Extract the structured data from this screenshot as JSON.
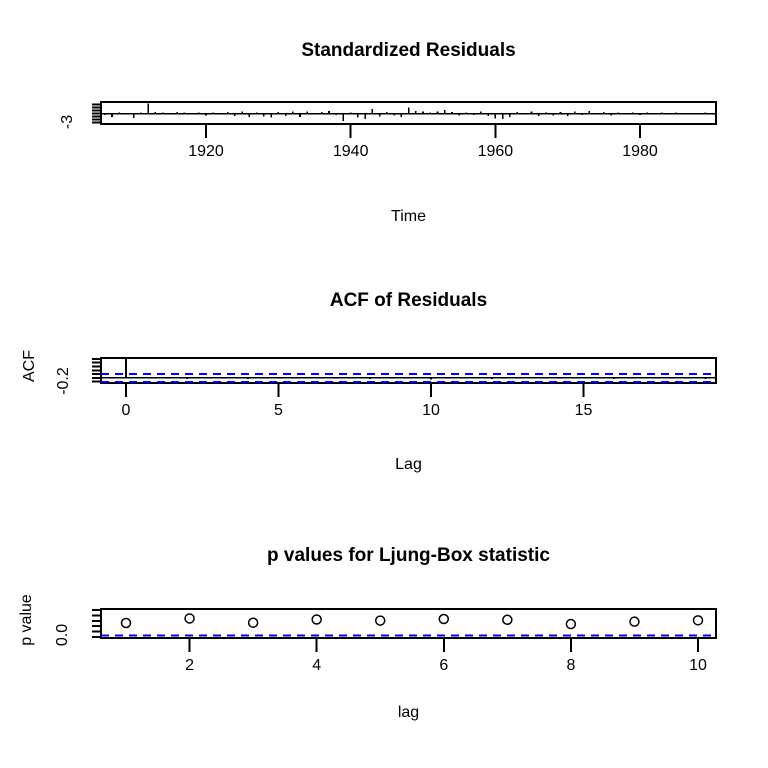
{
  "figure": {
    "kind": "R tsdiag time-series diagnostics",
    "colors": {
      "background": "#ffffff",
      "foreground": "#000000",
      "confidence_line": "#0000ff"
    }
  },
  "chart_data": [
    {
      "type": "bar",
      "title": "Standardized Residuals",
      "xlabel": "Time",
      "ylabel": "",
      "ytick_label": "-3",
      "x_start": 1906,
      "x_step": 1,
      "xticks": [
        1920,
        1940,
        1960,
        1980
      ],
      "yticks": [
        -3,
        -2,
        -1,
        0,
        1,
        2,
        3
      ],
      "ylim": [
        -3.6,
        3.6
      ],
      "values": [
        -0.5,
        -1.2,
        0.3,
        -0.3,
        -1.4,
        0.4,
        3.35,
        0.5,
        0.4,
        -0.3,
        0.5,
        0.3,
        -0.2,
        0.4,
        -0.6,
        0.3,
        -0.4,
        0.5,
        -0.8,
        0.6,
        -1.2,
        0.4,
        -1.0,
        -1.3,
        0.5,
        -0.9,
        0.6,
        -1.1,
        0.7,
        -0.4,
        0.5,
        0.9,
        -0.5,
        -2.4,
        0.4,
        -1.3,
        -1.8,
        1.5,
        -1.0,
        0.5,
        -0.7,
        -1.2,
        2.0,
        0.8,
        0.6,
        0.4,
        0.7,
        1.1,
        0.5,
        -0.6,
        0.4,
        -0.5,
        0.6,
        -0.9,
        -1.6,
        -1.8,
        -1.2,
        0.5,
        -0.4,
        0.6,
        -0.8,
        0.4,
        -0.6,
        0.5,
        -0.9,
        0.6,
        -0.5,
        0.8,
        -0.4,
        0.5,
        -0.6,
        0.3,
        -0.4,
        0.4,
        -0.5,
        0.3,
        -0.3,
        0.4,
        -0.4,
        0.3,
        -0.3,
        0.2,
        -0.4,
        0.3,
        -0.3
      ]
    },
    {
      "type": "bar",
      "title": "ACF of Residuals",
      "xlabel": "Lag",
      "ylabel": "ACF",
      "ytick_label": "-0.2",
      "lag_start": 0,
      "xticks": [
        0,
        5,
        10,
        15
      ],
      "yticks": [
        -0.2,
        0,
        0.2,
        0.4,
        0.6,
        0.8,
        1
      ],
      "ylim": [
        -0.27,
        1.05
      ],
      "confidence_bound": 0.21,
      "values": [
        1.0,
        0.02,
        -0.06,
        0.03,
        -0.05,
        0.02,
        -0.04,
        0.01,
        -0.05,
        0.03,
        -0.09,
        0.02,
        -0.06,
        0.04,
        -0.03,
        0.02,
        -0.07,
        0.01,
        -0.04,
        -0.06
      ]
    },
    {
      "type": "scatter",
      "title": "p values for Ljung-Box statistic",
      "xlabel": "lag",
      "ylabel": "p value",
      "ytick_label": "0.0",
      "x": [
        1,
        2,
        3,
        4,
        5,
        6,
        7,
        8,
        9,
        10
      ],
      "xticks": [
        2,
        4,
        6,
        8,
        10
      ],
      "yticks": [
        0,
        0.2,
        0.4,
        0.6,
        0.8,
        1
      ],
      "ylim": [
        -0.04,
        1.04
      ],
      "significance_line": 0.05,
      "values": [
        0.52,
        0.69,
        0.53,
        0.65,
        0.61,
        0.67,
        0.64,
        0.48,
        0.57,
        0.62
      ]
    }
  ]
}
